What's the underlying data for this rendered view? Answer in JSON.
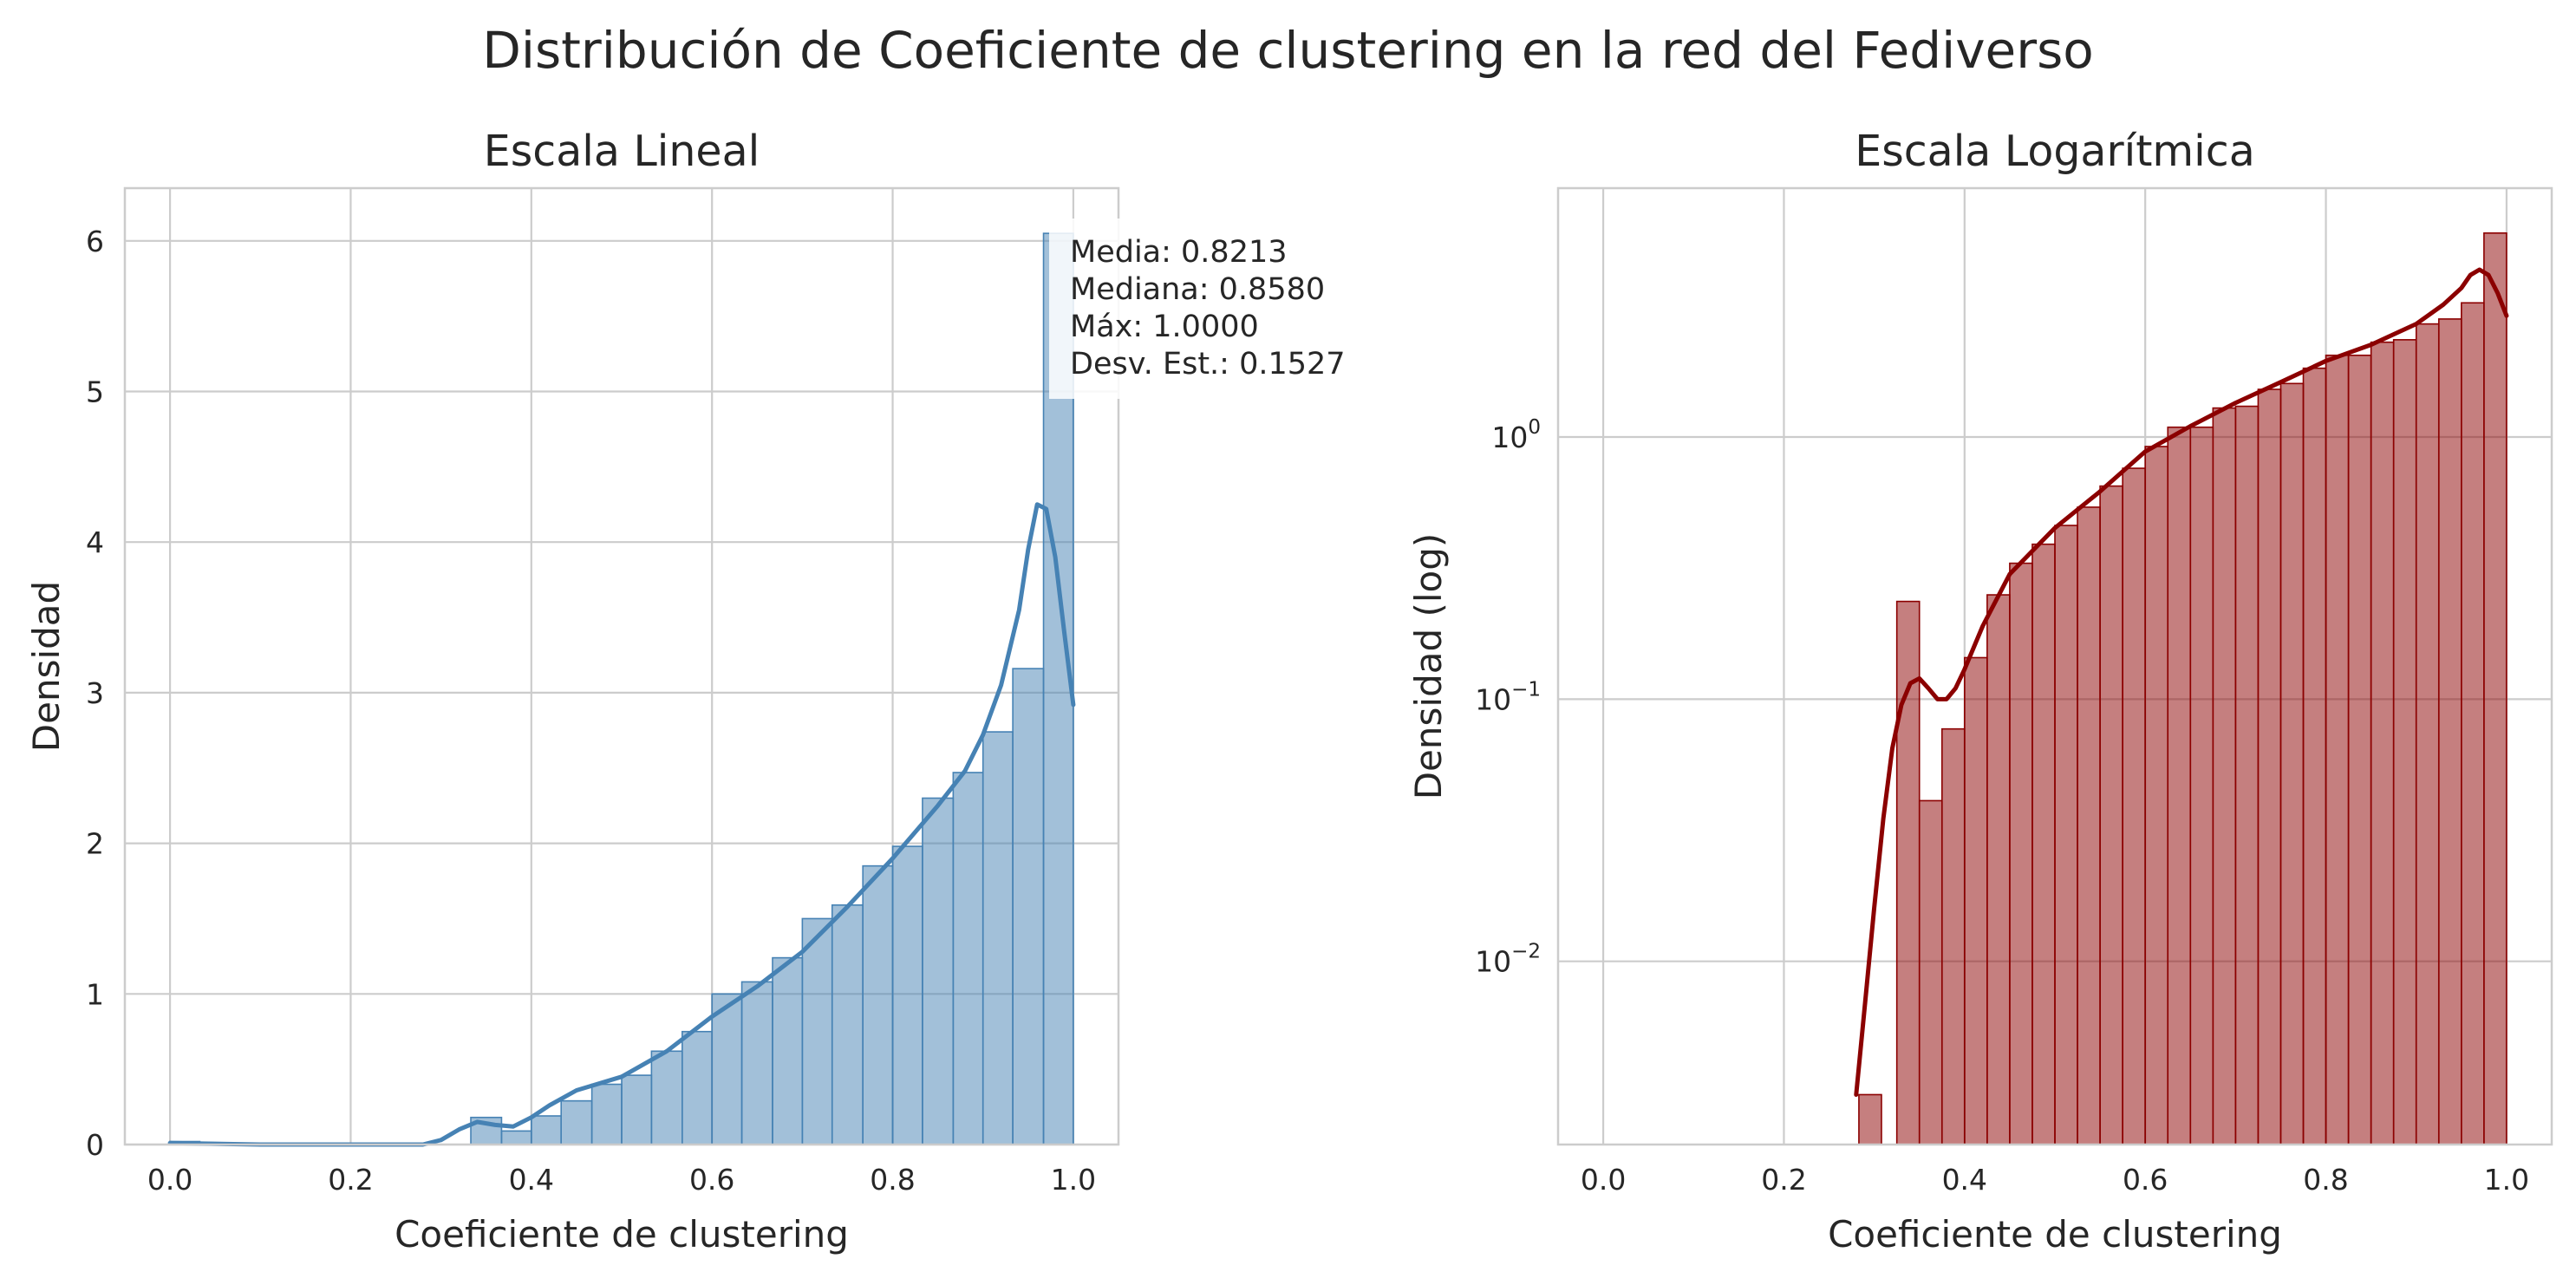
{
  "title": "Distribución de Coeficiente de clustering en la red del Fediverso",
  "chart_data": [
    {
      "type": "histogram",
      "title": "Escala Lineal",
      "xlabel": "Coeficiente de clustering",
      "ylabel": "Densidad",
      "xlim": [
        -0.05,
        1.05
      ],
      "ylim": [
        0,
        6.35
      ],
      "xticks": [
        0.0,
        0.2,
        0.4,
        0.6,
        0.8,
        1.0
      ],
      "yticks": [
        0,
        1,
        2,
        3,
        4,
        5,
        6
      ],
      "grid": true,
      "bar_color": "#4682b4",
      "kde_color": "#4682b4",
      "bins": [
        {
          "x0": 0.0,
          "x1": 0.033,
          "value": 0.02
        },
        {
          "x0": 0.333,
          "x1": 0.367,
          "value": 0.18
        },
        {
          "x0": 0.367,
          "x1": 0.4,
          "value": 0.09
        },
        {
          "x0": 0.4,
          "x1": 0.433,
          "value": 0.19
        },
        {
          "x0": 0.433,
          "x1": 0.467,
          "value": 0.29
        },
        {
          "x0": 0.467,
          "x1": 0.5,
          "value": 0.4
        },
        {
          "x0": 0.5,
          "x1": 0.533,
          "value": 0.46
        },
        {
          "x0": 0.533,
          "x1": 0.567,
          "value": 0.62
        },
        {
          "x0": 0.567,
          "x1": 0.6,
          "value": 0.75
        },
        {
          "x0": 0.6,
          "x1": 0.633,
          "value": 1.0
        },
        {
          "x0": 0.633,
          "x1": 0.667,
          "value": 1.08
        },
        {
          "x0": 0.667,
          "x1": 0.7,
          "value": 1.24
        },
        {
          "x0": 0.7,
          "x1": 0.733,
          "value": 1.5
        },
        {
          "x0": 0.733,
          "x1": 0.767,
          "value": 1.59
        },
        {
          "x0": 0.767,
          "x1": 0.8,
          "value": 1.85
        },
        {
          "x0": 0.8,
          "x1": 0.833,
          "value": 1.98
        },
        {
          "x0": 0.833,
          "x1": 0.867,
          "value": 2.3
        },
        {
          "x0": 0.867,
          "x1": 0.9,
          "value": 2.47
        },
        {
          "x0": 0.9,
          "x1": 0.933,
          "value": 2.74
        },
        {
          "x0": 0.933,
          "x1": 0.967,
          "value": 3.16
        },
        {
          "x0": 0.967,
          "x1": 1.0,
          "value": 6.05
        }
      ],
      "kde": {
        "x": [
          0.0,
          0.05,
          0.1,
          0.2,
          0.28,
          0.3,
          0.32,
          0.34,
          0.36,
          0.38,
          0.4,
          0.42,
          0.45,
          0.5,
          0.55,
          0.6,
          0.65,
          0.7,
          0.75,
          0.8,
          0.85,
          0.88,
          0.9,
          0.92,
          0.94,
          0.95,
          0.96,
          0.97,
          0.98,
          0.99,
          1.0
        ],
        "y": [
          0.01,
          0.005,
          0.0,
          0.0,
          0.0,
          0.03,
          0.1,
          0.15,
          0.13,
          0.12,
          0.18,
          0.26,
          0.36,
          0.45,
          0.62,
          0.85,
          1.05,
          1.28,
          1.58,
          1.9,
          2.25,
          2.48,
          2.72,
          3.05,
          3.55,
          3.95,
          4.25,
          4.22,
          3.9,
          3.4,
          2.92
        ]
      },
      "stats_box": {
        "lines": [
          "Media: 0.8213",
          "Mediana: 0.8580",
          "Máx: 1.0000",
          "Desv. Est.: 0.1527"
        ]
      }
    },
    {
      "type": "histogram",
      "title": "Escala Logarítmica",
      "xlabel": "Coeficiente de clustering",
      "ylabel": "Densidad (log)",
      "xscale": "linear",
      "yscale": "log",
      "xlim": [
        -0.05,
        1.05
      ],
      "ylim": [
        0.002,
        8.9
      ],
      "xticks": [
        0.0,
        0.2,
        0.4,
        0.6,
        0.8,
        1.0
      ],
      "yticks": [
        0.01,
        0.1,
        1
      ],
      "grid": true,
      "bar_color": "#8b0000",
      "kde_color": "#8b0000",
      "bins": [
        {
          "x0": 0.283,
          "x1": 0.308,
          "value": 0.0031
        },
        {
          "x0": 0.325,
          "x1": 0.35,
          "value": 0.236
        },
        {
          "x0": 0.35,
          "x1": 0.375,
          "value": 0.041
        },
        {
          "x0": 0.375,
          "x1": 0.4,
          "value": 0.077
        },
        {
          "x0": 0.4,
          "x1": 0.425,
          "value": 0.144
        },
        {
          "x0": 0.425,
          "x1": 0.45,
          "value": 0.25
        },
        {
          "x0": 0.45,
          "x1": 0.475,
          "value": 0.33
        },
        {
          "x0": 0.475,
          "x1": 0.5,
          "value": 0.39
        },
        {
          "x0": 0.5,
          "x1": 0.525,
          "value": 0.46
        },
        {
          "x0": 0.525,
          "x1": 0.55,
          "value": 0.54
        },
        {
          "x0": 0.55,
          "x1": 0.575,
          "value": 0.65
        },
        {
          "x0": 0.575,
          "x1": 0.6,
          "value": 0.76
        },
        {
          "x0": 0.6,
          "x1": 0.625,
          "value": 0.92
        },
        {
          "x0": 0.625,
          "x1": 0.65,
          "value": 1.09
        },
        {
          "x0": 0.65,
          "x1": 0.675,
          "value": 1.09
        },
        {
          "x0": 0.675,
          "x1": 0.7,
          "value": 1.29
        },
        {
          "x0": 0.7,
          "x1": 0.725,
          "value": 1.31
        },
        {
          "x0": 0.725,
          "x1": 0.75,
          "value": 1.52
        },
        {
          "x0": 0.75,
          "x1": 0.775,
          "value": 1.6
        },
        {
          "x0": 0.775,
          "x1": 0.8,
          "value": 1.83
        },
        {
          "x0": 0.8,
          "x1": 0.825,
          "value": 2.05
        },
        {
          "x0": 0.825,
          "x1": 0.85,
          "value": 2.05
        },
        {
          "x0": 0.85,
          "x1": 0.875,
          "value": 2.3
        },
        {
          "x0": 0.875,
          "x1": 0.9,
          "value": 2.35
        },
        {
          "x0": 0.9,
          "x1": 0.925,
          "value": 2.7
        },
        {
          "x0": 0.925,
          "x1": 0.95,
          "value": 2.82
        },
        {
          "x0": 0.95,
          "x1": 0.975,
          "value": 3.25
        },
        {
          "x0": 0.975,
          "x1": 1.0,
          "value": 6.0
        }
      ],
      "kde": {
        "x": [
          0.28,
          0.29,
          0.3,
          0.31,
          0.32,
          0.33,
          0.34,
          0.35,
          0.36,
          0.37,
          0.38,
          0.39,
          0.4,
          0.42,
          0.45,
          0.5,
          0.55,
          0.6,
          0.65,
          0.7,
          0.75,
          0.8,
          0.85,
          0.9,
          0.93,
          0.95,
          0.96,
          0.97,
          0.98,
          0.99,
          1.0
        ],
        "y": [
          0.0031,
          0.007,
          0.016,
          0.035,
          0.065,
          0.095,
          0.115,
          0.12,
          0.11,
          0.1,
          0.1,
          0.11,
          0.13,
          0.19,
          0.3,
          0.45,
          0.62,
          0.88,
          1.1,
          1.35,
          1.62,
          1.95,
          2.25,
          2.7,
          3.2,
          3.7,
          4.15,
          4.35,
          4.15,
          3.55,
          2.9
        ]
      }
    }
  ]
}
